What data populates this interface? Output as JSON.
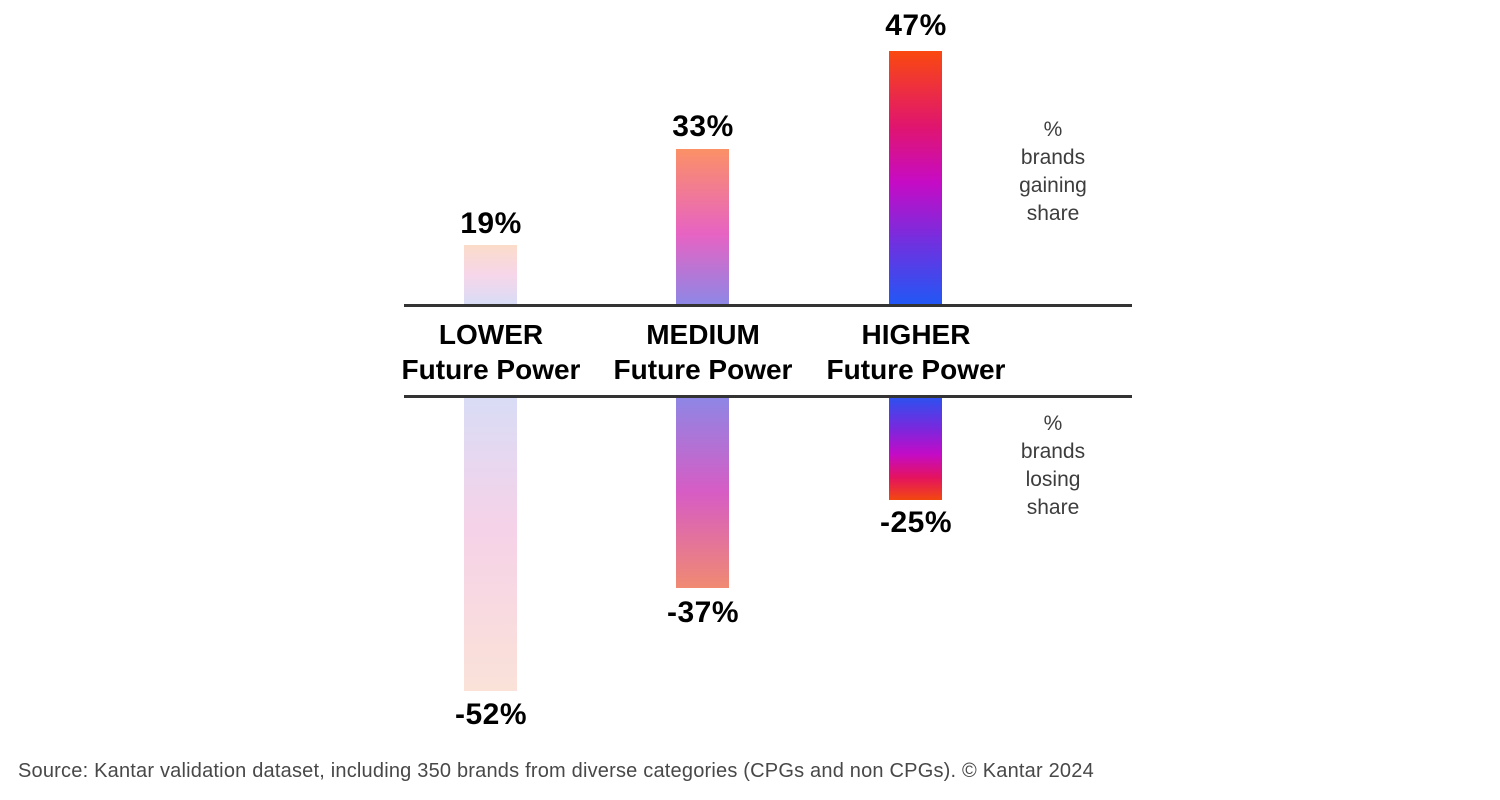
{
  "chart_data": {
    "type": "bar",
    "title": "",
    "categories": [
      "LOWER",
      "MEDIUM",
      "HIGHER"
    ],
    "category_subtitle": "Future Power",
    "series": [
      {
        "name": "% brands gaining share",
        "values": [
          19,
          33,
          47
        ],
        "labels": [
          "19%",
          "33%",
          "47%"
        ]
      },
      {
        "name": "% brands losing share",
        "values": [
          -52,
          -37,
          -25
        ],
        "labels": [
          "-52%",
          "-37%",
          "-25%"
        ]
      }
    ],
    "layout": {
      "orientation": "vertical diverging bars around a horizontal baseline band",
      "value_labels": "outside bar ends",
      "annotation_position": "right",
      "grid": "off"
    }
  },
  "annotations": {
    "gaining": {
      "lines": [
        "%",
        "brands",
        "gaining",
        "share"
      ]
    },
    "losing": {
      "lines": [
        "%",
        "brands",
        "losing",
        "share"
      ]
    }
  },
  "source": "Source: Kantar validation dataset, including 350 brands from diverse categories (CPGs and non CPGs). © Kantar 2024",
  "colors": {
    "axis_line": "#333333",
    "label_text": "#000000",
    "annotation_text": "#3d3d3d",
    "source_text": "#484848",
    "gradient_higher": [
      "#fa490f",
      "#c60bc5",
      "#2257f5"
    ],
    "gradient_medium": [
      "#fb9166",
      "#e763c3",
      "#8e86e5"
    ],
    "gradient_lower": [
      "#fbdcc9",
      "#f7d6e9",
      "#d9dcf6"
    ]
  }
}
